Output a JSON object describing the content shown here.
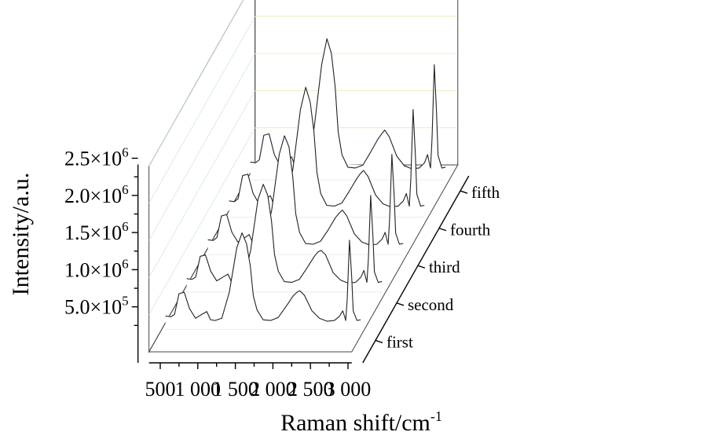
{
  "chart_data": {
    "type": "line",
    "view": "3d-waterfall",
    "xlabel": "Raman shift/cm",
    "xlabel_sup": "-1",
    "ylabel": "Intensity/a.u.",
    "x_ticks": [
      500,
      1000,
      1500,
      2000,
      2500,
      3000
    ],
    "x_tick_labels": [
      "500",
      "1 000",
      "1 500",
      "2 000",
      "2 500",
      "3 000"
    ],
    "xlim": [
      350,
      3050
    ],
    "y_ticks": [
      {
        "value": 500000,
        "mantissa": "5.0×10",
        "exp": "5"
      },
      {
        "value": 1000000,
        "mantissa": "1.0×10",
        "exp": "6"
      },
      {
        "value": 1500000,
        "mantissa": "1.5×10",
        "exp": "6"
      },
      {
        "value": 2000000,
        "mantissa": "2.0×10",
        "exp": "6"
      },
      {
        "value": 2500000,
        "mantissa": "2.5×10",
        "exp": "6"
      }
    ],
    "ylim": [
      0,
      2500000
    ],
    "wall_colors": {
      "side": "#e6fbf6",
      "back": "#faf7c9",
      "floor": "#ffffff"
    },
    "series": [
      {
        "name": "first",
        "x": [
          400,
          470,
          520,
          580,
          650,
          720,
          800,
          880,
          950,
          1000,
          1060,
          1150,
          1250,
          1350,
          1420,
          1480,
          1530,
          1570,
          1620,
          1700,
          1800,
          1900,
          2000,
          2100,
          2150,
          2190,
          2250,
          2350,
          2450,
          2550,
          2650,
          2720,
          2760,
          2790,
          2800,
          2820,
          2850,
          2880,
          2900,
          2950,
          3000
        ],
        "values": [
          180000,
          170000,
          200000,
          480000,
          500000,
          280000,
          150000,
          200000,
          240000,
          130000,
          120000,
          150000,
          500000,
          1100000,
          1300000,
          1150000,
          850000,
          450000,
          260000,
          130000,
          120000,
          160000,
          300000,
          450000,
          500000,
          520000,
          460000,
          250000,
          150000,
          110000,
          120000,
          180000,
          250000,
          160000,
          120000,
          400000,
          1200000,
          700000,
          250000,
          120000,
          130000
        ]
      },
      {
        "name": "second",
        "x": [
          400,
          470,
          520,
          580,
          650,
          720,
          800,
          880,
          950,
          1000,
          1060,
          1150,
          1250,
          1350,
          1420,
          1480,
          1530,
          1570,
          1620,
          1700,
          1800,
          1900,
          2000,
          2100,
          2150,
          2190,
          2250,
          2350,
          2450,
          2550,
          2650,
          2720,
          2760,
          2790,
          2800,
          2820,
          2850,
          2880,
          2900,
          2950,
          3000
        ],
        "values": [
          180000,
          170000,
          200000,
          480000,
          500000,
          280000,
          150000,
          200000,
          240000,
          130000,
          120000,
          150000,
          550000,
          1250000,
          1450000,
          1300000,
          950000,
          500000,
          280000,
          140000,
          130000,
          170000,
          320000,
          480000,
          540000,
          560000,
          500000,
          260000,
          160000,
          120000,
          130000,
          200000,
          290000,
          170000,
          130000,
          450000,
          1300000,
          750000,
          270000,
          130000,
          140000
        ]
      },
      {
        "name": "third",
        "x": [
          400,
          470,
          520,
          580,
          650,
          720,
          800,
          880,
          950,
          1000,
          1060,
          1150,
          1250,
          1350,
          1420,
          1480,
          1530,
          1570,
          1620,
          1700,
          1800,
          1900,
          2000,
          2100,
          2150,
          2190,
          2250,
          2350,
          2450,
          2550,
          2650,
          2720,
          2760,
          2790,
          2800,
          2820,
          2850,
          2880,
          2900,
          2950,
          3000
        ],
        "values": [
          200000,
          190000,
          230000,
          520000,
          540000,
          300000,
          170000,
          220000,
          270000,
          150000,
          140000,
          170000,
          600000,
          1350000,
          1600000,
          1450000,
          1050000,
          550000,
          300000,
          150000,
          140000,
          180000,
          330000,
          500000,
          560000,
          600000,
          520000,
          280000,
          170000,
          130000,
          140000,
          210000,
          300000,
          180000,
          140000,
          480000,
          1350000,
          800000,
          290000,
          140000,
          150000
        ]
      },
      {
        "name": "fourth",
        "x": [
          400,
          470,
          520,
          580,
          650,
          720,
          800,
          880,
          950,
          1000,
          1060,
          1150,
          1250,
          1350,
          1420,
          1480,
          1530,
          1570,
          1620,
          1700,
          1800,
          1900,
          2000,
          2100,
          2150,
          2190,
          2250,
          2350,
          2450,
          2550,
          2650,
          2720,
          2760,
          2790,
          2800,
          2820,
          2850,
          2880,
          2900,
          2950,
          3000
        ],
        "values": [
          220000,
          210000,
          250000,
          560000,
          580000,
          320000,
          180000,
          240000,
          290000,
          160000,
          150000,
          180000,
          650000,
          1450000,
          1750000,
          1550000,
          1150000,
          600000,
          320000,
          160000,
          150000,
          190000,
          350000,
          520000,
          590000,
          630000,
          550000,
          300000,
          180000,
          140000,
          150000,
          220000,
          320000,
          190000,
          150000,
          520000,
          1450000,
          850000,
          310000,
          150000,
          160000
        ]
      },
      {
        "name": "fifth",
        "x": [
          400,
          470,
          520,
          580,
          650,
          720,
          800,
          880,
          950,
          1000,
          1060,
          1150,
          1250,
          1350,
          1420,
          1480,
          1530,
          1570,
          1620,
          1700,
          1800,
          1900,
          2000,
          2100,
          2150,
          2190,
          2250,
          2350,
          2450,
          2550,
          2650,
          2720,
          2760,
          2790,
          2800,
          2820,
          2850,
          2880,
          2900,
          2950,
          3000
        ],
        "values": [
          240000,
          230000,
          270000,
          600000,
          620000,
          340000,
          190000,
          260000,
          310000,
          170000,
          160000,
          190000,
          700000,
          1550000,
          1900000,
          1700000,
          1250000,
          650000,
          340000,
          170000,
          160000,
          200000,
          370000,
          550000,
          620000,
          670000,
          580000,
          320000,
          190000,
          150000,
          160000,
          230000,
          340000,
          200000,
          160000,
          560000,
          1550000,
          900000,
          330000,
          160000,
          170000
        ]
      }
    ]
  }
}
